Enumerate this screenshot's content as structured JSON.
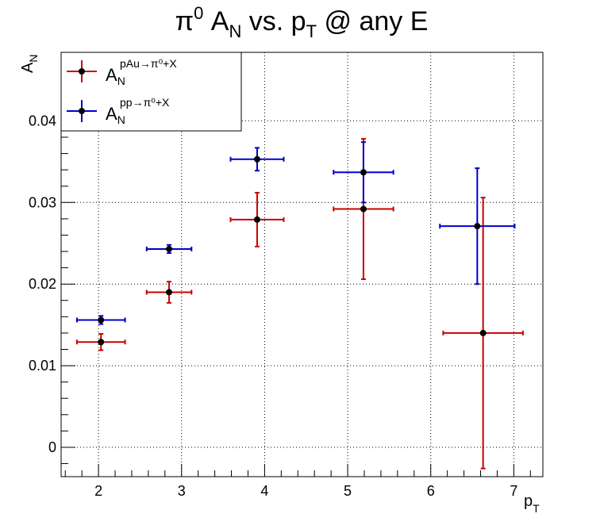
{
  "chart_data": {
    "type": "scatter",
    "title": {
      "parts": [
        "π",
        "0",
        " A",
        "N",
        " vs. p",
        "T",
        " @ any E"
      ]
    },
    "xlabel": {
      "main": "p",
      "sub": "T"
    },
    "ylabel": {
      "main": "A",
      "sub": "N"
    },
    "xlim": [
      1.55,
      7.35
    ],
    "ylim": [
      -0.0036,
      0.0484
    ],
    "xticks": [
      2,
      3,
      4,
      5,
      6,
      7
    ],
    "xtick_labels": [
      "2",
      "3",
      "4",
      "5",
      "6",
      "7"
    ],
    "yticks": [
      0,
      0.01,
      0.02,
      0.03,
      0.04
    ],
    "ytick_labels": [
      "0",
      "0.01",
      "0.02",
      "0.03",
      "0.04"
    ],
    "grid": true,
    "legend_position": "top-left",
    "series": [
      {
        "name": "pAu",
        "legend": {
          "main": "A",
          "sub": "N",
          "sup": "pAu→π⁰+X"
        },
        "color": "#cc0000",
        "points": [
          {
            "x": 2.03,
            "y": 0.0129,
            "xerr": 0.29,
            "yerr": 0.001
          },
          {
            "x": 2.85,
            "y": 0.019,
            "xerr": 0.27,
            "yerr": 0.0013
          },
          {
            "x": 3.91,
            "y": 0.0279,
            "xerr": 0.32,
            "yerr": 0.0033
          },
          {
            "x": 5.19,
            "y": 0.0292,
            "xerr": 0.36,
            "yerr": 0.0086
          },
          {
            "x": 6.63,
            "y": 0.014,
            "xerr": 0.48,
            "yerr": 0.0166
          }
        ]
      },
      {
        "name": "pp",
        "legend": {
          "main": "A",
          "sub": "N",
          "sup": "pp→π⁰+X"
        },
        "color": "#0000cc",
        "points": [
          {
            "x": 2.03,
            "y": 0.0156,
            "xerr": 0.29,
            "yerr": 0.0005
          },
          {
            "x": 2.85,
            "y": 0.0243,
            "xerr": 0.27,
            "yerr": 0.0005
          },
          {
            "x": 3.91,
            "y": 0.0353,
            "xerr": 0.32,
            "yerr": 0.0014
          },
          {
            "x": 5.19,
            "y": 0.0337,
            "xerr": 0.36,
            "yerr": 0.0037
          },
          {
            "x": 6.56,
            "y": 0.0271,
            "xerr": 0.45,
            "yerr": 0.0071
          }
        ]
      }
    ]
  }
}
